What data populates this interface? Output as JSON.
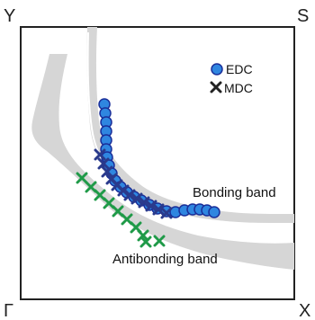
{
  "corners": {
    "top_left": "Y",
    "top_right": "S",
    "bottom_left": "Γ",
    "bottom_right": "X"
  },
  "legend": {
    "edc": "EDC",
    "mdc": "MDC"
  },
  "labels": {
    "bonding": "Bonding band",
    "antibonding": "Antibonding band"
  },
  "colors": {
    "edc_fill": "#2f86e0",
    "edc_stroke": "#1a2f9a",
    "mdc_bonding": "#2a3a8c",
    "mdc_antibonding": "#1f9a48",
    "band_fill": "#d6d6d6",
    "frame": "#222222"
  },
  "legend_icons": {
    "edc": "circle-marker",
    "mdc": "x-marker"
  }
}
